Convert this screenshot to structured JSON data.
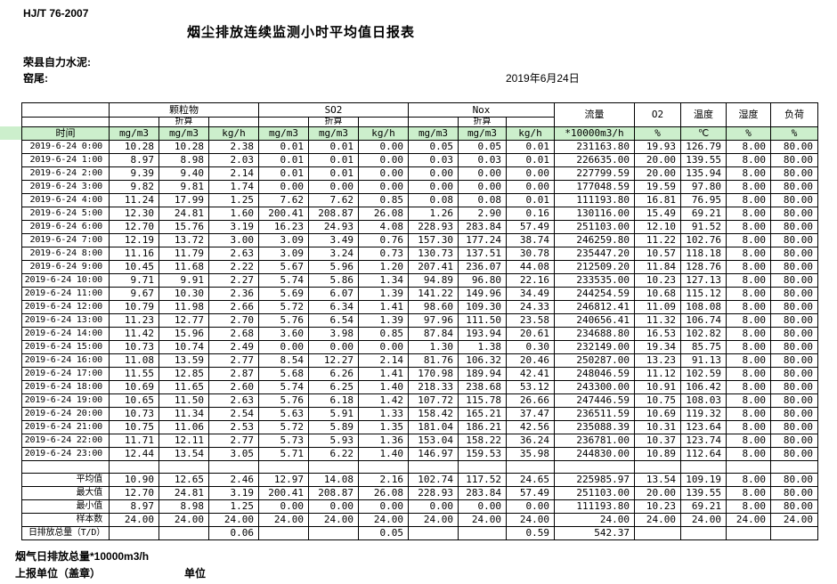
{
  "page": {
    "standard_code": "HJ/T 76-2007",
    "title": "烟尘排放连续监测小时平均值日报表",
    "company": "荣县自力水泥:",
    "station": "窑尾:",
    "date": "2019年6月24日"
  },
  "colors": {
    "header_green": "#ccefcc",
    "border": "#000000",
    "background": "#ffffff"
  },
  "table": {
    "groups": {
      "pm": "颗粒物",
      "so2": "SO2",
      "nox": "Nox",
      "conv": "折算",
      "flow": "流量",
      "o2": "O2",
      "temp": "温度",
      "humidity": "湿度",
      "load": "负荷"
    },
    "units": {
      "time": "时间",
      "mgm3": "mg/m3",
      "kgh": "kg/h",
      "flow": "*10000m3/h",
      "percent": "%",
      "celsius": "℃"
    },
    "rows": [
      [
        "2019-6-24 0:00",
        "10.28",
        "10.28",
        "2.38",
        "0.01",
        "0.01",
        "0.00",
        "0.05",
        "0.05",
        "0.01",
        "231163.80",
        "19.93",
        "126.79",
        "8.00",
        "80.00"
      ],
      [
        "2019-6-24 1:00",
        "8.97",
        "8.98",
        "2.03",
        "0.01",
        "0.01",
        "0.00",
        "0.03",
        "0.03",
        "0.01",
        "226635.00",
        "20.00",
        "139.55",
        "8.00",
        "80.00"
      ],
      [
        "2019-6-24 2:00",
        "9.39",
        "9.40",
        "2.14",
        "0.01",
        "0.01",
        "0.00",
        "0.00",
        "0.00",
        "0.00",
        "227799.59",
        "20.00",
        "135.94",
        "8.00",
        "80.00"
      ],
      [
        "2019-6-24 3:00",
        "9.82",
        "9.81",
        "1.74",
        "0.00",
        "0.00",
        "0.00",
        "0.00",
        "0.00",
        "0.00",
        "177048.59",
        "19.59",
        "97.80",
        "8.00",
        "80.00"
      ],
      [
        "2019-6-24 4:00",
        "11.24",
        "17.99",
        "1.25",
        "7.62",
        "7.62",
        "0.85",
        "0.08",
        "0.08",
        "0.01",
        "111193.80",
        "16.81",
        "76.95",
        "8.00",
        "80.00"
      ],
      [
        "2019-6-24 5:00",
        "12.30",
        "24.81",
        "1.60",
        "200.41",
        "208.87",
        "26.08",
        "1.26",
        "2.90",
        "0.16",
        "130116.00",
        "15.49",
        "69.21",
        "8.00",
        "80.00"
      ],
      [
        "2019-6-24 6:00",
        "12.70",
        "15.76",
        "3.19",
        "16.23",
        "24.93",
        "4.08",
        "228.93",
        "283.84",
        "57.49",
        "251103.00",
        "12.10",
        "91.52",
        "8.00",
        "80.00"
      ],
      [
        "2019-6-24 7:00",
        "12.19",
        "13.72",
        "3.00",
        "3.09",
        "3.49",
        "0.76",
        "157.30",
        "177.24",
        "38.74",
        "246259.80",
        "11.22",
        "102.76",
        "8.00",
        "80.00"
      ],
      [
        "2019-6-24 8:00",
        "11.16",
        "11.79",
        "2.63",
        "3.09",
        "3.24",
        "0.73",
        "130.73",
        "137.51",
        "30.78",
        "235447.20",
        "10.57",
        "118.18",
        "8.00",
        "80.00"
      ],
      [
        "2019-6-24 9:00",
        "10.45",
        "11.68",
        "2.22",
        "5.67",
        "5.96",
        "1.20",
        "207.41",
        "236.07",
        "44.08",
        "212509.20",
        "11.84",
        "128.76",
        "8.00",
        "80.00"
      ],
      [
        "2019-6-24 10:00",
        "9.71",
        "9.91",
        "2.27",
        "5.74",
        "5.86",
        "1.34",
        "94.89",
        "96.80",
        "22.16",
        "233535.00",
        "10.23",
        "127.13",
        "8.00",
        "80.00"
      ],
      [
        "2019-6-24 11:00",
        "9.67",
        "10.30",
        "2.36",
        "5.69",
        "6.07",
        "1.39",
        "141.22",
        "149.96",
        "34.49",
        "244254.59",
        "10.68",
        "115.12",
        "8.00",
        "80.00"
      ],
      [
        "2019-6-24 12:00",
        "10.79",
        "11.98",
        "2.66",
        "5.72",
        "6.34",
        "1.41",
        "98.60",
        "109.30",
        "24.33",
        "246812.41",
        "11.09",
        "108.08",
        "8.00",
        "80.00"
      ],
      [
        "2019-6-24 13:00",
        "11.23",
        "12.77",
        "2.70",
        "5.76",
        "6.54",
        "1.39",
        "97.96",
        "111.50",
        "23.58",
        "240656.41",
        "11.32",
        "106.74",
        "8.00",
        "80.00"
      ],
      [
        "2019-6-24 14:00",
        "11.42",
        "15.96",
        "2.68",
        "3.60",
        "3.98",
        "0.85",
        "87.84",
        "193.94",
        "20.61",
        "234688.80",
        "16.53",
        "102.82",
        "8.00",
        "80.00"
      ],
      [
        "2019-6-24 15:00",
        "10.73",
        "10.74",
        "2.49",
        "0.00",
        "0.00",
        "0.00",
        "1.30",
        "1.38",
        "0.30",
        "232149.00",
        "19.34",
        "85.75",
        "8.00",
        "80.00"
      ],
      [
        "2019-6-24 16:00",
        "11.08",
        "13.59",
        "2.77",
        "8.54",
        "12.27",
        "2.14",
        "81.76",
        "106.32",
        "20.46",
        "250287.00",
        "13.23",
        "91.13",
        "8.00",
        "80.00"
      ],
      [
        "2019-6-24 17:00",
        "11.55",
        "12.85",
        "2.87",
        "5.68",
        "6.26",
        "1.41",
        "170.98",
        "189.94",
        "42.41",
        "248046.59",
        "11.12",
        "102.59",
        "8.00",
        "80.00"
      ],
      [
        "2019-6-24 18:00",
        "10.69",
        "11.65",
        "2.60",
        "5.74",
        "6.25",
        "1.40",
        "218.33",
        "238.68",
        "53.12",
        "243300.00",
        "10.91",
        "106.42",
        "8.00",
        "80.00"
      ],
      [
        "2019-6-24 19:00",
        "10.65",
        "11.50",
        "2.63",
        "5.76",
        "6.18",
        "1.42",
        "107.72",
        "115.78",
        "26.66",
        "247446.59",
        "10.75",
        "108.03",
        "8.00",
        "80.00"
      ],
      [
        "2019-6-24 20:00",
        "10.73",
        "11.34",
        "2.54",
        "5.63",
        "5.91",
        "1.33",
        "158.42",
        "165.21",
        "37.47",
        "236511.59",
        "10.69",
        "119.32",
        "8.00",
        "80.00"
      ],
      [
        "2019-6-24 21:00",
        "10.75",
        "11.06",
        "2.53",
        "5.72",
        "5.89",
        "1.35",
        "181.04",
        "186.21",
        "42.56",
        "235088.39",
        "10.31",
        "123.64",
        "8.00",
        "80.00"
      ],
      [
        "2019-6-24 22:00",
        "11.71",
        "12.11",
        "2.77",
        "5.73",
        "5.93",
        "1.36",
        "153.04",
        "158.22",
        "36.24",
        "236781.00",
        "10.37",
        "123.74",
        "8.00",
        "80.00"
      ],
      [
        "2019-6-24 23:00",
        "12.44",
        "13.54",
        "3.05",
        "5.71",
        "6.22",
        "1.40",
        "146.97",
        "159.53",
        "35.98",
        "244830.00",
        "10.89",
        "112.64",
        "8.00",
        "80.00"
      ]
    ],
    "summary": [
      [
        "平均值",
        "10.90",
        "12.65",
        "2.46",
        "12.97",
        "14.08",
        "2.16",
        "102.74",
        "117.52",
        "24.65",
        "225985.97",
        "13.54",
        "109.19",
        "8.00",
        "80.00"
      ],
      [
        "最大值",
        "12.70",
        "24.81",
        "3.19",
        "200.41",
        "208.87",
        "26.08",
        "228.93",
        "283.84",
        "57.49",
        "251103.00",
        "20.00",
        "139.55",
        "8.00",
        "80.00"
      ],
      [
        "最小值",
        "8.97",
        "8.98",
        "1.25",
        "0.00",
        "0.00",
        "0.00",
        "0.00",
        "0.00",
        "0.00",
        "111193.80",
        "10.23",
        "69.21",
        "8.00",
        "80.00"
      ],
      [
        "样本数",
        "24.00",
        "24.00",
        "24.00",
        "24.00",
        "24.00",
        "24.00",
        "24.00",
        "24.00",
        "24.00",
        "24.00",
        "24.00",
        "24.00",
        "24.00",
        "24.00"
      ],
      [
        "日排放总量（T/D）",
        "",
        "",
        "0.06",
        "",
        "",
        "0.05",
        "",
        "",
        "0.59",
        "542.37",
        "",
        "",
        "",
        ""
      ]
    ]
  },
  "footer": {
    "flue_gas_total": "烟气日排放总量*10000m3/h",
    "report_unit": "上报单位（盖章）",
    "unit": "单位"
  }
}
